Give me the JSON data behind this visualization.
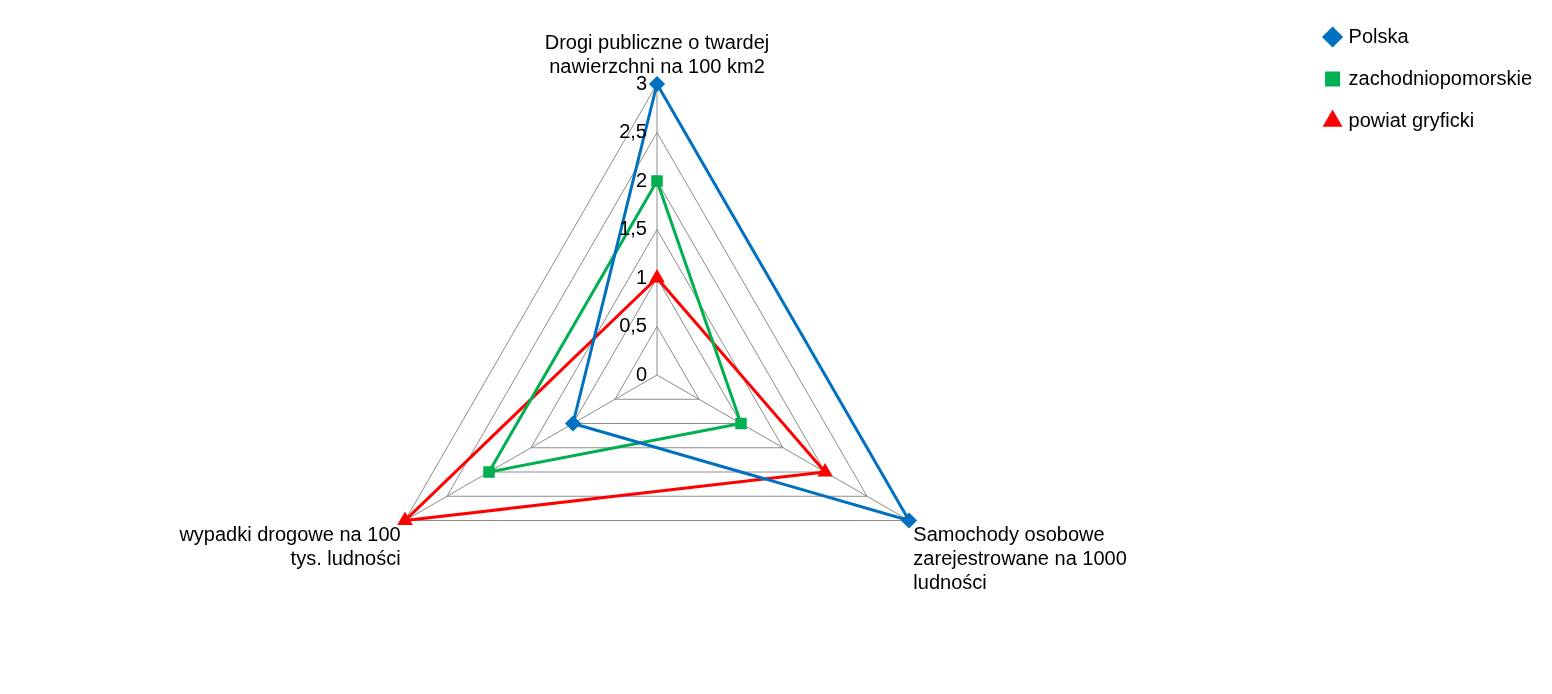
{
  "chart_data": {
    "type": "radar",
    "categories": [
      "Drogi publiczne o twardej nawierzchni na 100 km2",
      "Samochody osobowe zarejestrowane na 1000 ludności",
      "wypadki drogowe na 100 tys. ludności"
    ],
    "series": [
      {
        "name": "Polska",
        "color": "#0070c0",
        "values": [
          3,
          3,
          1
        ],
        "marker": "diamond"
      },
      {
        "name": "zachodniopomorskie",
        "color": "#00b050",
        "values": [
          2,
          1,
          2
        ],
        "marker": "square"
      },
      {
        "name": "powiat gryficki",
        "color": "#ff0000",
        "values": [
          1,
          2,
          3
        ],
        "marker": "triangle"
      }
    ],
    "ylim": [
      0,
      3
    ],
    "yticks": [
      {
        "value": 0,
        "label": "0"
      },
      {
        "value": 0.5,
        "label": "0,5"
      },
      {
        "value": 1,
        "label": "1"
      },
      {
        "value": 1.5,
        "label": "1,5"
      },
      {
        "value": 2,
        "label": "2"
      },
      {
        "value": 2.5,
        "label": "2,5"
      },
      {
        "value": 3,
        "label": "3"
      }
    ],
    "grid": true,
    "legend": "top right"
  }
}
